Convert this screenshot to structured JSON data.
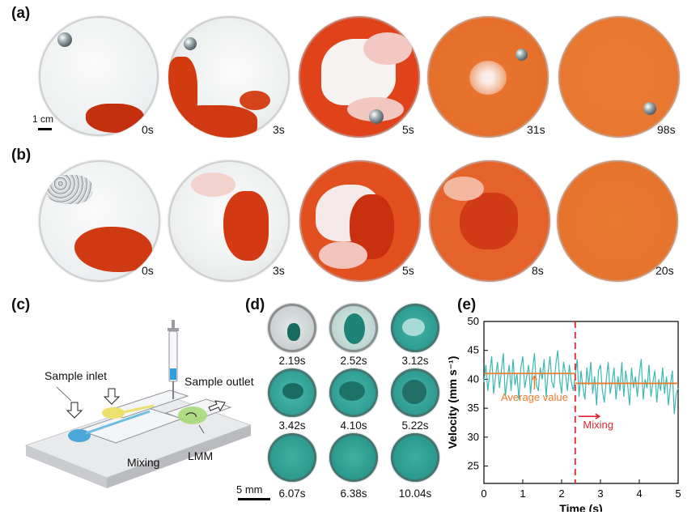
{
  "panels": {
    "a": {
      "label": "(a)",
      "times": [
        "0s",
        "3s",
        "5s",
        "31s",
        "98s"
      ],
      "scale_bar": "1 cm"
    },
    "b": {
      "label": "(b)",
      "times": [
        "0s",
        "3s",
        "5s",
        "8s",
        "20s"
      ]
    },
    "c": {
      "label": "(c)",
      "sample_inlet": "Sample inlet",
      "sample_outlet": "Sample outlet",
      "mixing": "Mixing",
      "lmm": "LMM"
    },
    "d": {
      "label": "(d)",
      "times": [
        "2.19s",
        "2.52s",
        "3.12s",
        "3.42s",
        "4.10s",
        "5.22s",
        "6.07s",
        "6.38s",
        "10.04s"
      ],
      "scale_bar": "5 mm"
    },
    "e": {
      "label": "(e)"
    }
  },
  "colors": {
    "dye_red": "#c9320f",
    "dye_orange": "#e77327",
    "teal": "#2fa39a",
    "orange_line": "#ec7a2c",
    "dashed_red": "#e0262e"
  },
  "chart_data": {
    "type": "line",
    "title": "",
    "xlabel": "Time (s)",
    "ylabel": "Velocity (mm s⁻¹)",
    "xlim": [
      0,
      5
    ],
    "ylim": [
      22,
      50
    ],
    "x_ticks": [
      "0",
      "1",
      "2",
      "3",
      "4",
      "5"
    ],
    "y_ticks": [
      "25",
      "30",
      "35",
      "40",
      "45",
      "50"
    ],
    "series": [
      {
        "name": "Velocity",
        "x": [
          0.0,
          0.05,
          0.1,
          0.15,
          0.2,
          0.25,
          0.3,
          0.35,
          0.4,
          0.45,
          0.5,
          0.55,
          0.6,
          0.65,
          0.7,
          0.75,
          0.8,
          0.85,
          0.9,
          0.95,
          1.0,
          1.05,
          1.1,
          1.15,
          1.2,
          1.25,
          1.3,
          1.35,
          1.4,
          1.45,
          1.5,
          1.55,
          1.6,
          1.65,
          1.7,
          1.75,
          1.8,
          1.85,
          1.9,
          1.95,
          2.0,
          2.05,
          2.1,
          2.15,
          2.2,
          2.25,
          2.3,
          2.35,
          2.4,
          2.45,
          2.5,
          2.55,
          2.6,
          2.65,
          2.7,
          2.75,
          2.8,
          2.85,
          2.9,
          2.95,
          3.0,
          3.05,
          3.1,
          3.15,
          3.2,
          3.25,
          3.3,
          3.35,
          3.4,
          3.45,
          3.5,
          3.55,
          3.6,
          3.65,
          3.7,
          3.75,
          3.8,
          3.85,
          3.9,
          3.95,
          4.0,
          4.05,
          4.1,
          4.15,
          4.2,
          4.25,
          4.3,
          4.35,
          4.4,
          4.45,
          4.5,
          4.55,
          4.6,
          4.65,
          4.7,
          4.75,
          4.8,
          4.85,
          4.9,
          4.95,
          5.0
        ],
        "y": [
          39.5,
          42.5,
          38.0,
          41.0,
          44.0,
          37.5,
          40.5,
          43.0,
          38.5,
          41.5,
          44.5,
          37.0,
          40.0,
          42.5,
          38.0,
          43.5,
          39.0,
          41.0,
          36.5,
          42.0,
          44.0,
          38.5,
          40.5,
          42.5,
          37.5,
          41.5,
          44.5,
          39.0,
          38.0,
          42.0,
          40.0,
          43.5,
          37.0,
          41.0,
          44.0,
          39.5,
          38.5,
          42.5,
          45.0,
          40.0,
          37.5,
          43.0,
          41.0,
          38.0,
          42.5,
          39.5,
          38.0,
          40.5,
          43.5,
          37.0,
          41.5,
          38.5,
          36.5,
          42.0,
          39.0,
          43.0,
          37.5,
          40.5,
          35.5,
          41.5,
          42.5,
          38.0,
          36.0,
          40.0,
          43.0,
          37.5,
          39.5,
          42.0,
          36.5,
          40.5,
          38.0,
          43.0,
          37.0,
          41.5,
          39.0,
          35.5,
          42.0,
          38.5,
          40.5,
          37.0,
          41.0,
          43.5,
          36.5,
          40.0,
          38.5,
          42.5,
          37.0,
          39.5,
          41.5,
          36.0,
          40.0,
          38.0,
          42.0,
          37.5,
          40.5,
          35.5,
          39.0,
          41.5,
          34.0,
          37.5,
          38.5
        ]
      },
      {
        "name": "Average value",
        "segments": [
          {
            "x": [
              0.0,
              2.35
            ],
            "y": [
              41.0,
              41.0
            ]
          },
          {
            "x": [
              2.35,
              5.0
            ],
            "y": [
              39.3,
              39.3
            ]
          }
        ]
      }
    ],
    "vline": {
      "x": 2.35,
      "style": "dashed"
    },
    "annotations": [
      {
        "text": "Average value",
        "x": 1.3,
        "y": 36.3
      },
      {
        "text": "Mixing",
        "x": 2.55,
        "y": 31.5
      }
    ]
  }
}
